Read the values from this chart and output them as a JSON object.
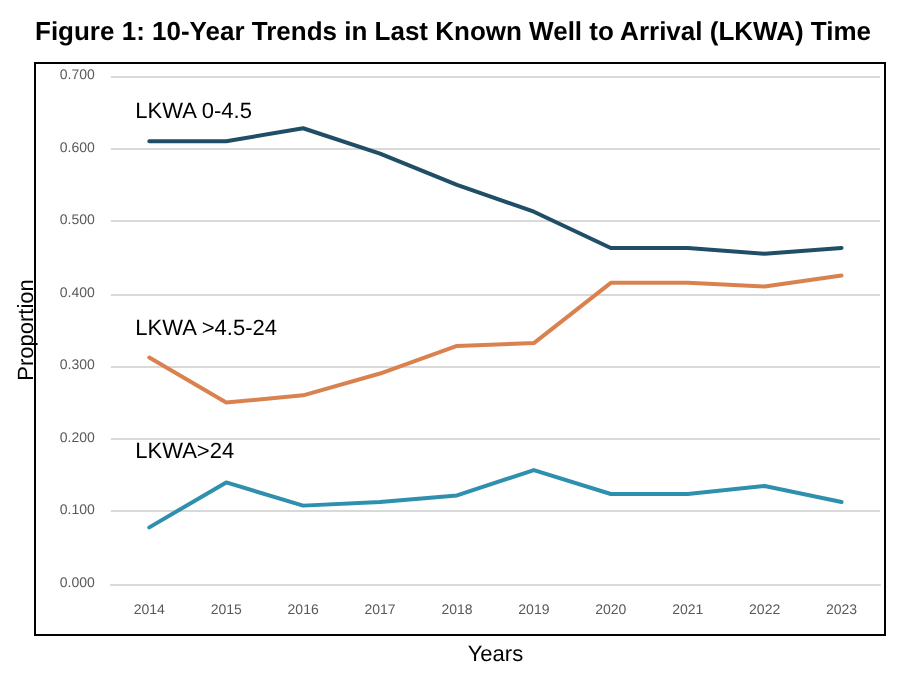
{
  "chart_data": {
    "type": "line",
    "title": "Figure 1: 10-Year Trends in Last Known Well to Arrival (LKWA) Time",
    "xlabel": "Years",
    "ylabel": "Proportion",
    "categories": [
      "2014",
      "2015",
      "2016",
      "2017",
      "2018",
      "2019",
      "2020",
      "2021",
      "2022",
      "2023"
    ],
    "series": [
      {
        "name": "LKWA 0-4.5",
        "color": "#1f4e66",
        "values": [
          0.61,
          0.61,
          0.628,
          0.593,
          0.55,
          0.513,
          0.463,
          0.463,
          0.455,
          0.463
        ]
      },
      {
        "name": "LKWA >4.5-24",
        "color": "#d9824f",
        "values": [
          0.312,
          0.25,
          0.26,
          0.29,
          0.328,
          0.332,
          0.415,
          0.415,
          0.41,
          0.425
        ]
      },
      {
        "name": "LKWA>24",
        "color": "#2e8fae",
        "values": [
          0.078,
          0.14,
          0.108,
          0.113,
          0.122,
          0.157,
          0.124,
          0.124,
          0.135,
          0.113
        ]
      }
    ],
    "ylim": [
      0,
      0.7
    ],
    "yticks": [
      {
        "value": 0,
        "label": "0.000"
      },
      {
        "value": 0.1,
        "label": "0.100"
      },
      {
        "value": 0.2,
        "label": "0.200"
      },
      {
        "value": 0.3,
        "label": "0.300"
      },
      {
        "value": 0.4,
        "label": "0.400"
      },
      {
        "value": 0.5,
        "label": "0.500"
      },
      {
        "value": 0.6,
        "label": "0.600"
      },
      {
        "value": 0.7,
        "label": "0.700"
      }
    ],
    "grid": "y",
    "legend": false,
    "marker": "none",
    "line_style": "solid"
  }
}
